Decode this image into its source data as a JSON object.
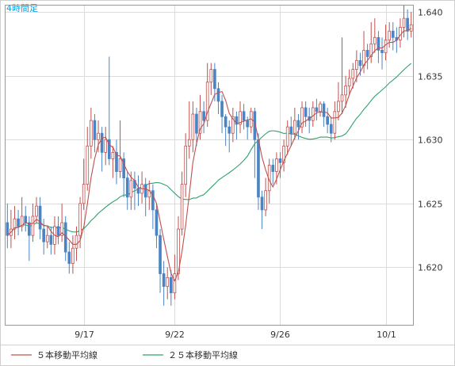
{
  "chart_data": {
    "type": "candlestick",
    "timeframe_label": "4時間足",
    "x_tick_labels": [
      "9/17",
      "9/22",
      "9/26",
      "10/1"
    ],
    "x_tick_index": [
      21,
      46,
      75,
      104
    ],
    "y_ticks": [
      1.62,
      1.625,
      1.63,
      1.635,
      1.64
    ],
    "y_tick_labels": [
      "1.620",
      "1.625",
      "1.630",
      "1.635",
      "1.640"
    ],
    "ylim": [
      1.6155,
      1.6405
    ],
    "grid": true,
    "legend": [
      {
        "label": "５本移動平均線",
        "color": "#c0504d"
      },
      {
        "label": "２５本移動平均線",
        "color": "#2ea36a"
      }
    ],
    "colors": {
      "bull": "#c0504d",
      "bear": "#4a84c4",
      "ma5": "#c0504d",
      "ma25": "#2ea36a",
      "grid": "#dcdcdc",
      "axis_text": "#333333",
      "title": "#00a0e9"
    },
    "candles": [
      [
        1.6235,
        1.6225,
        1.625,
        1.6215
      ],
      [
        1.6225,
        1.623,
        1.6245,
        1.6215
      ],
      [
        1.623,
        1.6238,
        1.6248,
        1.6222
      ],
      [
        1.6238,
        1.6232,
        1.6245,
        1.6225
      ],
      [
        1.6232,
        1.624,
        1.6255,
        1.6228
      ],
      [
        1.624,
        1.6235,
        1.6248,
        1.6228
      ],
      [
        1.6235,
        1.6225,
        1.624,
        1.6205
      ],
      [
        1.6225,
        1.624,
        1.625,
        1.622
      ],
      [
        1.624,
        1.6248,
        1.6255,
        1.6235
      ],
      [
        1.6248,
        1.623,
        1.6255,
        1.6222
      ],
      [
        1.623,
        1.622,
        1.6238,
        1.621
      ],
      [
        1.622,
        1.6225,
        1.6232,
        1.6215
      ],
      [
        1.6225,
        1.6218,
        1.6232,
        1.621
      ],
      [
        1.6218,
        1.6232,
        1.624,
        1.621
      ],
      [
        1.6232,
        1.6225,
        1.624,
        1.6218
      ],
      [
        1.6225,
        1.6235,
        1.625,
        1.622
      ],
      [
        1.6235,
        1.6212,
        1.624,
        1.6205
      ],
      [
        1.6212,
        1.6203,
        1.622,
        1.6195
      ],
      [
        1.6203,
        1.6215,
        1.6225,
        1.6195
      ],
      [
        1.6215,
        1.6225,
        1.6232,
        1.6205
      ],
      [
        1.6225,
        1.625,
        1.6255,
        1.6215
      ],
      [
        1.625,
        1.6265,
        1.6285,
        1.6245
      ],
      [
        1.6265,
        1.6295,
        1.631,
        1.626
      ],
      [
        1.6295,
        1.6315,
        1.6325,
        1.6285
      ],
      [
        1.6315,
        1.63,
        1.632,
        1.629
      ],
      [
        1.63,
        1.6305,
        1.6315,
        1.629
      ],
      [
        1.6305,
        1.629,
        1.631,
        1.6275
      ],
      [
        1.629,
        1.63,
        1.631,
        1.628
      ],
      [
        1.63,
        1.6285,
        1.6365,
        1.628
      ],
      [
        1.6285,
        1.629,
        1.6295,
        1.627
      ],
      [
        1.629,
        1.6275,
        1.63,
        1.6265
      ],
      [
        1.6275,
        1.6285,
        1.6315,
        1.627
      ],
      [
        1.6285,
        1.627,
        1.629,
        1.6255
      ],
      [
        1.627,
        1.6255,
        1.6275,
        1.6245
      ],
      [
        1.6255,
        1.6268,
        1.6275,
        1.6245
      ],
      [
        1.6268,
        1.6262,
        1.6275,
        1.6245
      ],
      [
        1.6262,
        1.6258,
        1.6272,
        1.6248
      ],
      [
        1.6258,
        1.6265,
        1.6275,
        1.625
      ],
      [
        1.6265,
        1.6255,
        1.627,
        1.624
      ],
      [
        1.6255,
        1.626,
        1.6268,
        1.6245
      ],
      [
        1.626,
        1.6245,
        1.6265,
        1.623
      ],
      [
        1.6245,
        1.6225,
        1.625,
        1.6215
      ],
      [
        1.6225,
        1.6195,
        1.623,
        1.618
      ],
      [
        1.6195,
        1.6185,
        1.6205,
        1.617
      ],
      [
        1.6185,
        1.6192,
        1.62,
        1.6175
      ],
      [
        1.6192,
        1.618,
        1.6198,
        1.617
      ],
      [
        1.618,
        1.6195,
        1.621,
        1.6175
      ],
      [
        1.6195,
        1.623,
        1.624,
        1.619
      ],
      [
        1.623,
        1.6265,
        1.6275,
        1.6225
      ],
      [
        1.6265,
        1.6295,
        1.6305,
        1.6255
      ],
      [
        1.6295,
        1.63,
        1.633,
        1.6285
      ],
      [
        1.63,
        1.632,
        1.633,
        1.629
      ],
      [
        1.632,
        1.6305,
        1.6325,
        1.6295
      ],
      [
        1.6305,
        1.6322,
        1.6335,
        1.63
      ],
      [
        1.6322,
        1.6315,
        1.633,
        1.6305
      ],
      [
        1.6315,
        1.6345,
        1.636,
        1.631
      ],
      [
        1.6345,
        1.6355,
        1.636,
        1.6335
      ],
      [
        1.6355,
        1.634,
        1.636,
        1.633
      ],
      [
        1.634,
        1.633,
        1.6345,
        1.632
      ],
      [
        1.633,
        1.6318,
        1.6335,
        1.6305
      ],
      [
        1.6318,
        1.631,
        1.632,
        1.6295
      ],
      [
        1.631,
        1.6305,
        1.6315,
        1.629
      ],
      [
        1.6305,
        1.6318,
        1.6325,
        1.6298
      ],
      [
        1.6318,
        1.6312,
        1.6322,
        1.63
      ],
      [
        1.6312,
        1.6322,
        1.633,
        1.6305
      ],
      [
        1.6322,
        1.6315,
        1.6328,
        1.6308
      ],
      [
        1.6315,
        1.631,
        1.6318,
        1.63
      ],
      [
        1.631,
        1.6322,
        1.6325,
        1.6305
      ],
      [
        1.6322,
        1.63,
        1.6325,
        1.627
      ],
      [
        1.63,
        1.6255,
        1.6305,
        1.6245
      ],
      [
        1.6255,
        1.6245,
        1.626,
        1.623
      ],
      [
        1.6245,
        1.626,
        1.627,
        1.624
      ],
      [
        1.626,
        1.628,
        1.6285,
        1.625
      ],
      [
        1.628,
        1.6275,
        1.6285,
        1.6265
      ],
      [
        1.6275,
        1.6285,
        1.629,
        1.6265
      ],
      [
        1.6285,
        1.6282,
        1.629,
        1.627
      ],
      [
        1.6282,
        1.6295,
        1.63,
        1.6275
      ],
      [
        1.6295,
        1.631,
        1.6315,
        1.6288
      ],
      [
        1.631,
        1.6305,
        1.6318,
        1.6295
      ],
      [
        1.6305,
        1.6315,
        1.6325,
        1.63
      ],
      [
        1.6315,
        1.631,
        1.632,
        1.63
      ],
      [
        1.631,
        1.6325,
        1.633,
        1.6305
      ],
      [
        1.6325,
        1.6318,
        1.633,
        1.631
      ],
      [
        1.6318,
        1.6315,
        1.6325,
        1.6305
      ],
      [
        1.6315,
        1.6325,
        1.633,
        1.631
      ],
      [
        1.6325,
        1.6322,
        1.6332,
        1.6315
      ],
      [
        1.6322,
        1.6328,
        1.633,
        1.6318
      ],
      [
        1.6328,
        1.6318,
        1.633,
        1.631
      ],
      [
        1.6318,
        1.6312,
        1.6325,
        1.6305
      ],
      [
        1.6312,
        1.6305,
        1.6318,
        1.6298
      ],
      [
        1.6305,
        1.6322,
        1.633,
        1.63
      ],
      [
        1.6322,
        1.633,
        1.6345,
        1.6315
      ],
      [
        1.633,
        1.6335,
        1.638,
        1.632
      ],
      [
        1.6335,
        1.6342,
        1.635,
        1.6325
      ],
      [
        1.6342,
        1.6348,
        1.6355,
        1.6335
      ],
      [
        1.6348,
        1.6355,
        1.636,
        1.634
      ],
      [
        1.6355,
        1.6362,
        1.637,
        1.6345
      ],
      [
        1.6362,
        1.6358,
        1.6368,
        1.635
      ],
      [
        1.6358,
        1.637,
        1.6385,
        1.6352
      ],
      [
        1.637,
        1.6365,
        1.6375,
        1.6355
      ],
      [
        1.6365,
        1.6375,
        1.6392,
        1.636
      ],
      [
        1.6375,
        1.638,
        1.6395,
        1.6368
      ],
      [
        1.638,
        1.637,
        1.6385,
        1.636
      ],
      [
        1.637,
        1.6368,
        1.638,
        1.6355
      ],
      [
        1.6368,
        1.6378,
        1.639,
        1.6362
      ],
      [
        1.6378,
        1.6385,
        1.6392,
        1.6372
      ],
      [
        1.6385,
        1.638,
        1.6392,
        1.637
      ],
      [
        1.638,
        1.6378,
        1.6388,
        1.6368
      ],
      [
        1.6378,
        1.6388,
        1.6395,
        1.6372
      ],
      [
        1.6388,
        1.6395,
        1.6405,
        1.638
      ],
      [
        1.6395,
        1.6385,
        1.6402,
        1.6378
      ],
      [
        1.6385,
        1.639,
        1.64,
        1.638
      ]
    ]
  }
}
